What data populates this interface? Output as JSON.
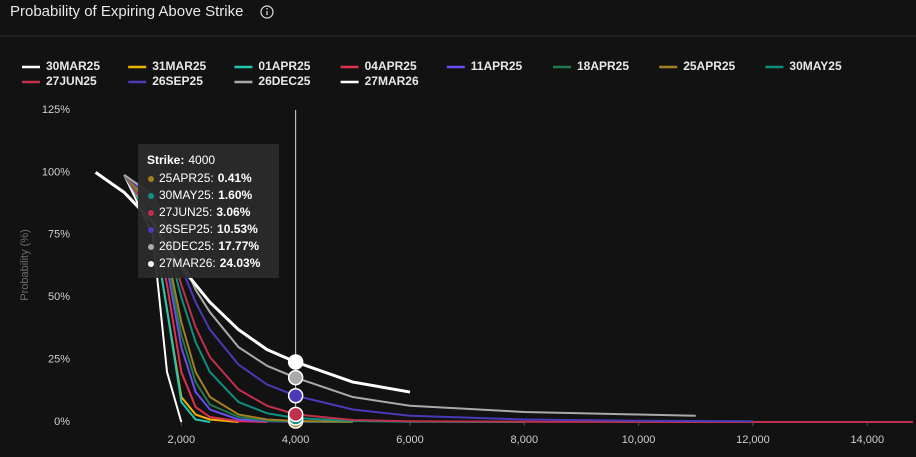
{
  "chart_data": {
    "type": "line",
    "title": "Probability of Expiring Above Strike",
    "y_label": "Probability (%)",
    "x": [
      500,
      1000,
      1500,
      1750,
      2000,
      2250,
      2500,
      3000,
      3500,
      4000,
      5000,
      6000,
      8000,
      10000,
      11000,
      12000,
      14800
    ],
    "xlim": [
      0,
      14800
    ],
    "xticks": [
      {
        "value": 2000,
        "label": "2,000"
      },
      {
        "value": 4000,
        "label": "4,000"
      },
      {
        "value": 6000,
        "label": "6,000"
      },
      {
        "value": 8000,
        "label": "8,000"
      },
      {
        "value": 10000,
        "label": "10,000"
      },
      {
        "value": 12000,
        "label": "12,000"
      },
      {
        "value": 14000,
        "label": "14,000"
      }
    ],
    "ylim": [
      0,
      125
    ],
    "yticks": [
      {
        "value": 0,
        "label": "0%"
      },
      {
        "value": 25,
        "label": "25%"
      },
      {
        "value": 50,
        "label": "50%"
      },
      {
        "value": 75,
        "label": "75%"
      },
      {
        "value": 100,
        "label": "100%"
      },
      {
        "value": 125,
        "label": "125%"
      }
    ],
    "grid": false,
    "series": [
      {
        "name": "30MAR25",
        "color": "#ffffff",
        "values": [
          null,
          99,
          75,
          20,
          0,
          null,
          null,
          null,
          null,
          null,
          null,
          null,
          null,
          null,
          null,
          null,
          null
        ]
      },
      {
        "name": "31MAR25",
        "color": "#f0b400",
        "values": [
          null,
          99,
          80,
          45,
          10,
          3,
          1,
          0,
          null,
          null,
          null,
          null,
          null,
          null,
          null,
          null,
          null
        ]
      },
      {
        "name": "01APR25",
        "color": "#1fc7b0",
        "values": [
          null,
          99,
          80,
          45,
          8,
          1,
          0,
          null,
          null,
          null,
          null,
          null,
          null,
          null,
          null,
          null,
          null
        ]
      },
      {
        "name": "04APR25",
        "color": "#e0304f",
        "values": [
          null,
          99,
          82,
          55,
          20,
          6,
          2,
          0.3,
          0,
          null,
          null,
          null,
          null,
          null,
          null,
          null,
          null
        ]
      },
      {
        "name": "11APR25",
        "color": "#6a4cf0",
        "values": [
          null,
          99,
          85,
          62,
          30,
          12,
          5,
          1,
          0.3,
          0.1,
          0,
          null,
          null,
          null,
          null,
          null,
          null
        ]
      },
      {
        "name": "18APR25",
        "color": "#1e7a4c",
        "values": [
          null,
          99,
          85,
          65,
          35,
          16,
          7,
          2,
          0.5,
          0.2,
          0,
          null,
          null,
          null,
          null,
          null,
          null
        ]
      },
      {
        "name": "25APR25",
        "color": "#a08020",
        "values": [
          null,
          99,
          86,
          68,
          40,
          20,
          10,
          3,
          1,
          0.41,
          0.1,
          null,
          null,
          null,
          null,
          null,
          null
        ]
      },
      {
        "name": "30MAY25",
        "color": "#0f8f7f",
        "values": [
          null,
          99,
          88,
          72,
          50,
          32,
          20,
          8,
          3.5,
          1.6,
          0.4,
          0.1,
          0,
          null,
          null,
          null,
          null
        ]
      },
      {
        "name": "27JUN25",
        "color": "#c0304a",
        "values": [
          null,
          99,
          89,
          74,
          55,
          38,
          26,
          13,
          6.5,
          3.06,
          0.8,
          0.3,
          0.1,
          0,
          0,
          0,
          0
        ]
      },
      {
        "name": "26SEP25",
        "color": "#4a3ab8",
        "values": [
          null,
          99,
          90,
          77,
          62,
          48,
          37,
          23,
          15,
          10.53,
          5,
          2.5,
          1,
          0.5,
          0.4,
          0.3,
          null
        ]
      },
      {
        "name": "26DEC25",
        "color": "#aaaaaa",
        "values": [
          null,
          99,
          91,
          79,
          66,
          53,
          44,
          30,
          22.5,
          17.77,
          10,
          6.5,
          4,
          3,
          2.5,
          null,
          null
        ]
      },
      {
        "name": "27MAR26",
        "color": "#ffffff",
        "values": [
          100,
          92,
          80,
          70,
          62,
          55,
          48,
          37,
          29,
          24.03,
          16,
          12,
          null,
          null,
          null,
          null,
          null
        ]
      }
    ],
    "tooltip": {
      "label": "Strike:",
      "x": 4000,
      "entries": [
        {
          "name": "25APR25:",
          "value": 0.41,
          "value_label": "0.41%"
        },
        {
          "name": "30MAY25:",
          "value": 1.6,
          "value_label": "1.60%"
        },
        {
          "name": "27JUN25:",
          "value": 3.06,
          "value_label": "3.06%"
        },
        {
          "name": "26SEP25:",
          "value": 10.53,
          "value_label": "10.53%"
        },
        {
          "name": "26DEC25:",
          "value": 17.77,
          "value_label": "17.77%"
        },
        {
          "name": "27MAR26:",
          "value": 24.03,
          "value_label": "24.03%"
        }
      ]
    }
  }
}
